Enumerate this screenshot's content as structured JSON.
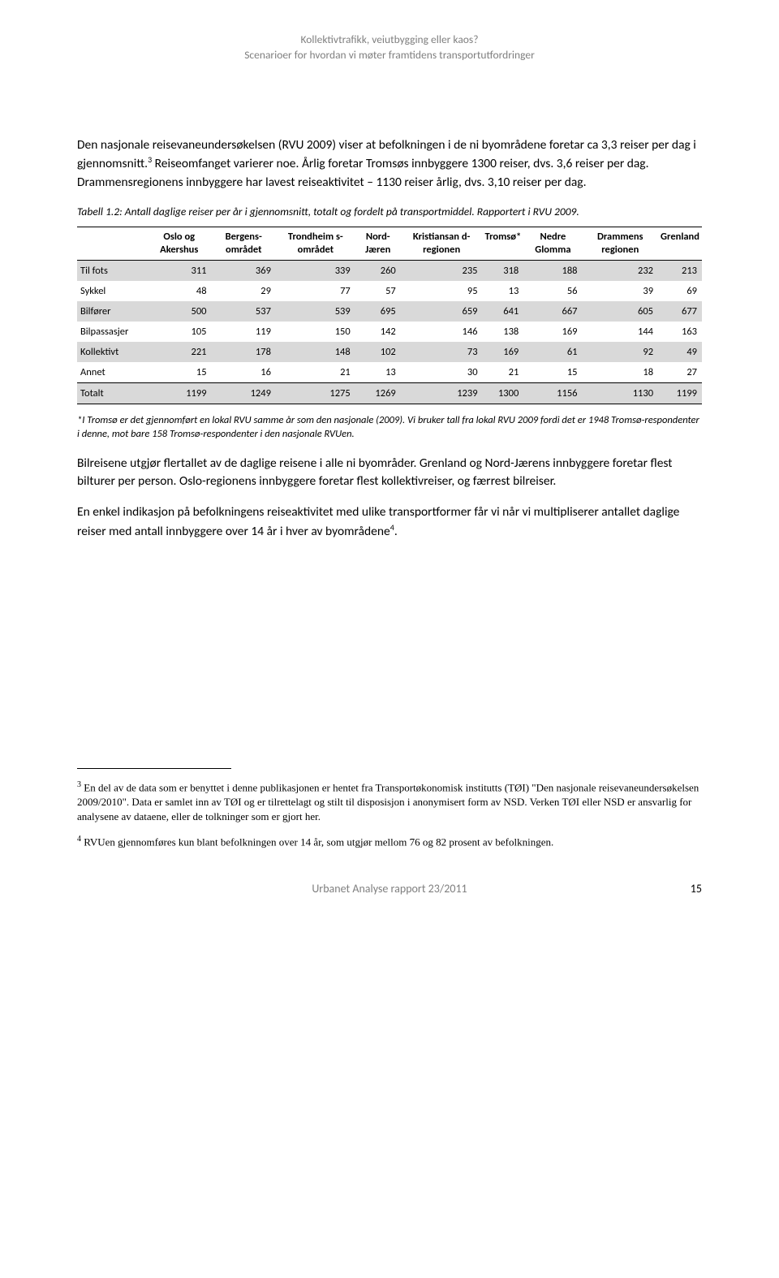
{
  "header": {
    "line1": "Kollektivtrafikk, veiutbygging eller kaos?",
    "line2": "Scenarioer for hvordan vi møter framtidens transportutfordringer"
  },
  "paragraphs": {
    "p1_a": "Den nasjonale reisevaneundersøkelsen (RVU 2009) viser at befolkningen i de ni byområdene foretar ca 3,3 reiser per dag i gjennomsnitt.",
    "p1_b": " Reiseomfanget varierer noe. Årlig foretar Tromsøs innbyggere 1300 reiser, dvs. 3,6 reiser per dag. Drammensregionens innbyggere har lavest reiseaktivitet – 1130 reiser årlig, dvs. 3,10 reiser per dag.",
    "caption": "Tabell 1.2: Antall daglige reiser per år i gjennomsnitt, totalt og fordelt på transportmiddel. Rapportert i RVU 2009.",
    "note": "*I Tromsø er det gjennomført en lokal RVU samme år som den nasjonale (2009). Vi bruker tall fra lokal RVU 2009 fordi det er 1948 Tromsø-respondenter i denne, mot bare 158 Tromsø-respondenter i den nasjonale RVUen.",
    "p2": "Bilreisene utgjør flertallet av de daglige reisene i alle ni byområder. Grenland og Nord-Jærens innbyggere foretar flest bilturer per person. Oslo-regionens innbyggere foretar flest kollektivreiser, og færrest bilreiser.",
    "p3_a": "En enkel indikasjon på befolkningens reiseaktivitet med ulike transportformer får vi når vi multipliserer antallet daglige reiser med antall innbyggere over 14 år i hver av byområdene",
    "p3_b": "."
  },
  "table": {
    "columns": [
      "",
      "Oslo og Akershus",
      "Bergens-området",
      "Trondheim s-området",
      "Nord-Jæren",
      "Kristiansan d-regionen",
      "Tromsø*",
      "Nedre Glomma",
      "Drammens regionen",
      "Grenland"
    ],
    "rows": [
      {
        "label": "Til fots",
        "vals": [
          311,
          369,
          339,
          260,
          235,
          318,
          188,
          232,
          213
        ],
        "shaded": true
      },
      {
        "label": "Sykkel",
        "vals": [
          48,
          29,
          77,
          57,
          95,
          13,
          56,
          39,
          69
        ],
        "shaded": false
      },
      {
        "label": "Bilfører",
        "vals": [
          500,
          537,
          539,
          695,
          659,
          641,
          667,
          605,
          677
        ],
        "shaded": true
      },
      {
        "label": "Bilpassasjer",
        "vals": [
          105,
          119,
          150,
          142,
          146,
          138,
          169,
          144,
          163
        ],
        "shaded": false
      },
      {
        "label": "Kollektivt",
        "vals": [
          221,
          178,
          148,
          102,
          73,
          169,
          61,
          92,
          49
        ],
        "shaded": true
      },
      {
        "label": "Annet",
        "vals": [
          15,
          16,
          21,
          13,
          30,
          21,
          15,
          18,
          27
        ],
        "shaded": false
      }
    ],
    "total": {
      "label": "Totalt",
      "vals": [
        1199,
        1249,
        1275,
        1269,
        1239,
        1300,
        1156,
        1130,
        1199
      ]
    },
    "shaded_bg": "#d9d9d9"
  },
  "footnotes": {
    "fn3": " En del av de data som er benyttet i denne publikasjonen er hentet fra Transportøkonomisk institutts (TØI) \"Den nasjonale reisevaneundersøkelsen 2009/2010\". Data er samlet inn av TØI og er tilrettelagt og stilt til disposisjon i anonymisert form av NSD. Verken TØI eller NSD er ansvarlig for analysene av dataene, eller de tolkninger som er gjort her.",
    "fn4": " RVUen gjennomføres kun blant befolkningen over 14 år, som utgjør mellom 76 og 82 prosent av befolkningen."
  },
  "footer": {
    "text": "Urbanet Analyse rapport 23/2011",
    "page": "15"
  }
}
